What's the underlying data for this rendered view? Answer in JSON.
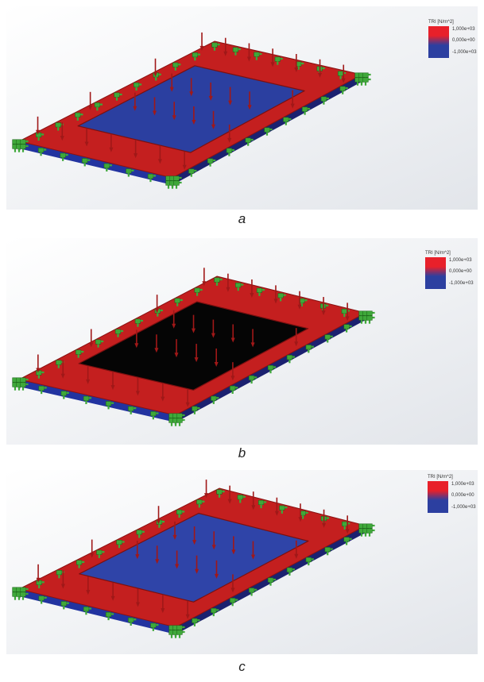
{
  "panels": [
    {
      "caption": "a",
      "inner_fill": "#2b3fa0",
      "legend": {
        "title": "TRI [N/m^2]",
        "max": "1,000e+03",
        "mid": "0,000e+00",
        "min": "-1,000e+03"
      }
    },
    {
      "caption": "b",
      "inner_fill": "#050505",
      "legend": {
        "title": "TRI [N/m^2]",
        "max": "1,000e+03",
        "mid": "0,000e+00",
        "min": "-1,000e+03"
      }
    },
    {
      "caption": "c",
      "inner_fill": "#2f44a8",
      "legend": {
        "title": "TRI [N/m^2]",
        "max": "1,000e+03",
        "mid": "0,000e+00",
        "min": "-1,000e+03"
      }
    }
  ],
  "colors": {
    "frame_red": "#c41f1f",
    "frame_dark_red": "#8a1212",
    "support_green": "#3fa83a",
    "arrow_red": "#a01818",
    "legend_red": "#e8202a",
    "legend_blue": "#2c3fa0"
  }
}
